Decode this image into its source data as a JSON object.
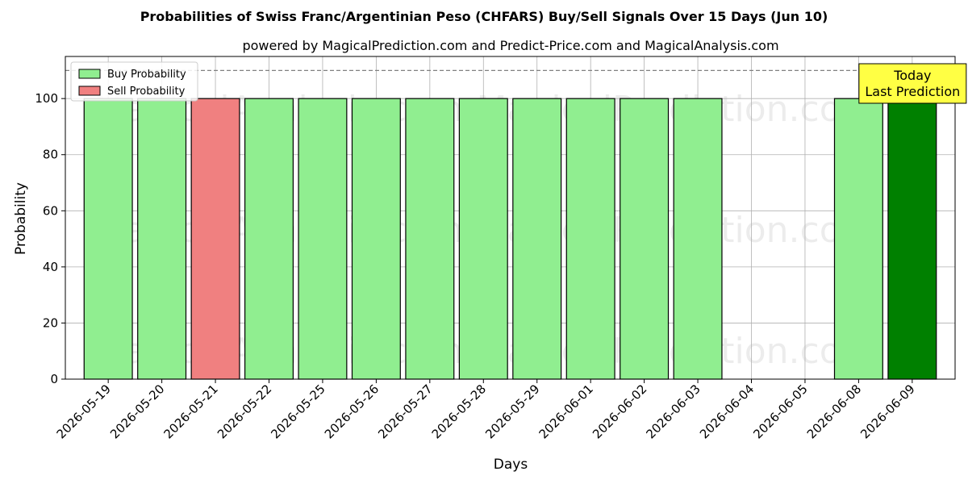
{
  "chart_data": {
    "type": "bar",
    "title": "Probabilities of Swiss Franc/Argentinian Peso (CHFARS) Buy/Sell Signals Over 15 Days (Jun 10)",
    "subtitle": "powered by MagicalPrediction.com and Predict-Price.com and MagicalAnalysis.com",
    "xlabel": "Days",
    "ylabel": "Probability",
    "ylim": [
      0,
      115
    ],
    "yticks": [
      0,
      20,
      40,
      60,
      80,
      100
    ],
    "grid": true,
    "legend_position": "top-left",
    "reference_line": 110,
    "categories": [
      "2026-05-19",
      "2026-05-20",
      "2026-05-21",
      "2026-05-22",
      "2026-05-25",
      "2026-05-26",
      "2026-05-27",
      "2026-05-28",
      "2026-05-29",
      "2026-06-01",
      "2026-06-02",
      "2026-06-03",
      "2026-06-04",
      "2026-06-05",
      "2026-06-08",
      "2026-06-09"
    ],
    "series": [
      {
        "name": "Buy Probability",
        "color": "#90ee90",
        "values": [
          100,
          100,
          null,
          100,
          100,
          100,
          100,
          100,
          100,
          100,
          100,
          100,
          null,
          null,
          100,
          100
        ]
      },
      {
        "name": "Sell Probability",
        "color": "#f08080",
        "values": [
          null,
          null,
          100,
          null,
          null,
          null,
          null,
          null,
          null,
          null,
          null,
          null,
          null,
          null,
          null,
          null
        ]
      }
    ],
    "highlight": {
      "index": 15,
      "color": "#008000"
    },
    "annotation": {
      "lines": [
        "Today",
        "Last Prediction"
      ],
      "background": "#ffff44"
    },
    "watermarks": [
      "MagicalAnalysis.com",
      "MagicalPrediction.com"
    ]
  }
}
